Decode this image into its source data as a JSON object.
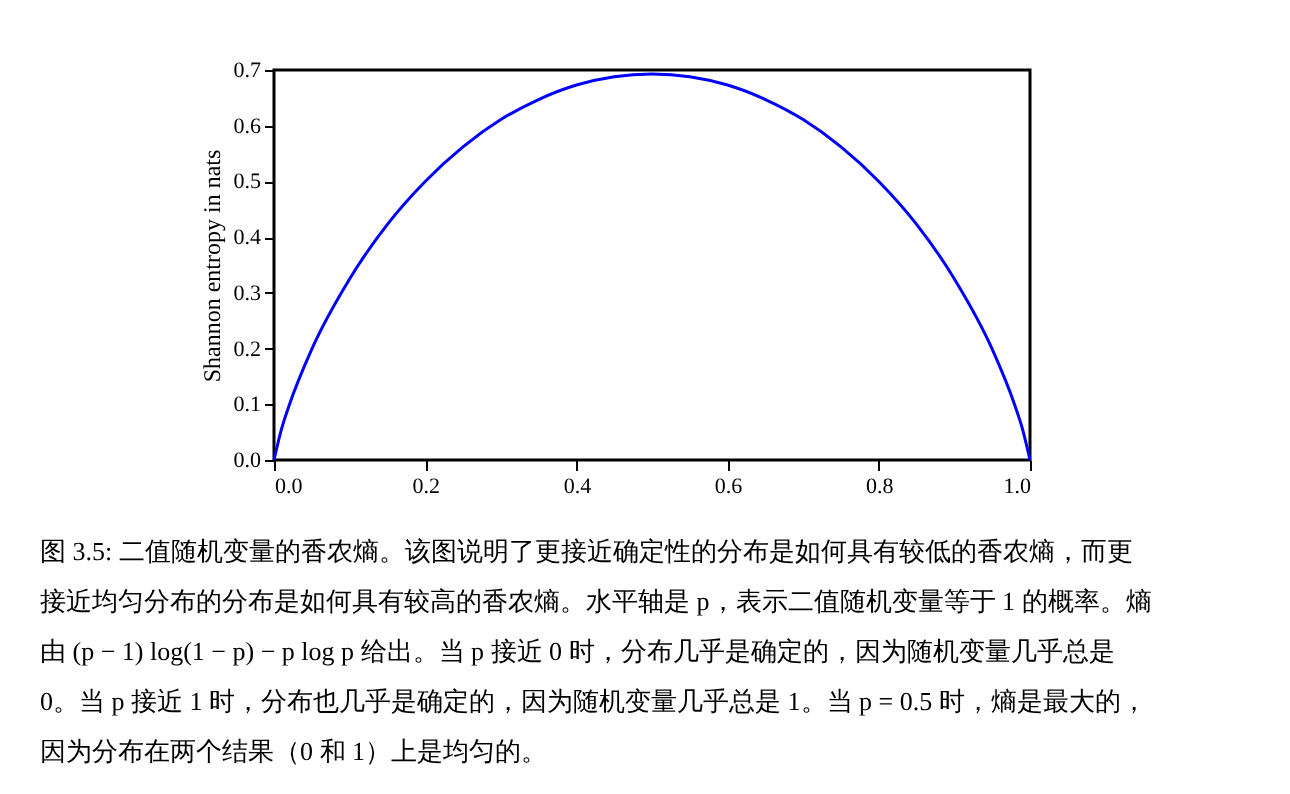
{
  "chart_data": {
    "type": "line",
    "ylabel": "Shannon entropy in nats",
    "x": [
      0,
      0.01,
      0.02,
      0.05,
      0.1,
      0.15,
      0.2,
      0.25,
      0.3,
      0.35,
      0.4,
      0.45,
      0.5,
      0.55,
      0.6,
      0.65,
      0.7,
      0.75,
      0.8,
      0.85,
      0.9,
      0.95,
      0.98,
      0.99,
      1
    ],
    "series": [
      {
        "color": "#0000ff",
        "values": [
          0,
          0.056,
          0.098,
          0.199,
          0.325,
          0.423,
          0.5,
          0.562,
          0.611,
          0.647,
          0.673,
          0.688,
          0.693,
          0.688,
          0.673,
          0.647,
          0.611,
          0.562,
          0.5,
          0.423,
          0.325,
          0.199,
          0.098,
          0.056,
          0
        ]
      }
    ],
    "xlim": [
      0,
      1
    ],
    "xticks": [
      {
        "value": 0,
        "label": "0.0"
      },
      0.2,
      0.4,
      0.6,
      0.8,
      {
        "value": 1,
        "label": "1.0"
      }
    ],
    "ylim": [
      0,
      0.7
    ],
    "yticks": [
      {
        "value": 0,
        "label": "0.0"
      },
      0.1,
      0.2,
      0.3,
      0.4,
      0.5,
      0.6,
      0.7
    ],
    "grid": false,
    "line_style": "solid",
    "annotations": [
      "图 3.5: 二值随机变量的香农熵。该图说明了更接近确定性的分布是如何具有较低的香农熵，而更",
      "接近均匀分布的分布是如何具有较高的香农熵。水平轴是 p，表示二值随机变量等于 1 的概率。熵",
      "由 (p − 1) log(1 − p) − p log p 给出。当 p 接近 0 时，分布几乎是确定的，因为随机变量几乎总是",
      "0。当 p 接近 1 时，分布也几乎是确定的，因为随机变量几乎总是 1。当 p = 0.5 时，熵是最大的，",
      "因为分布在两个结果（0 和 1）上是均匀的。"
    ]
  }
}
